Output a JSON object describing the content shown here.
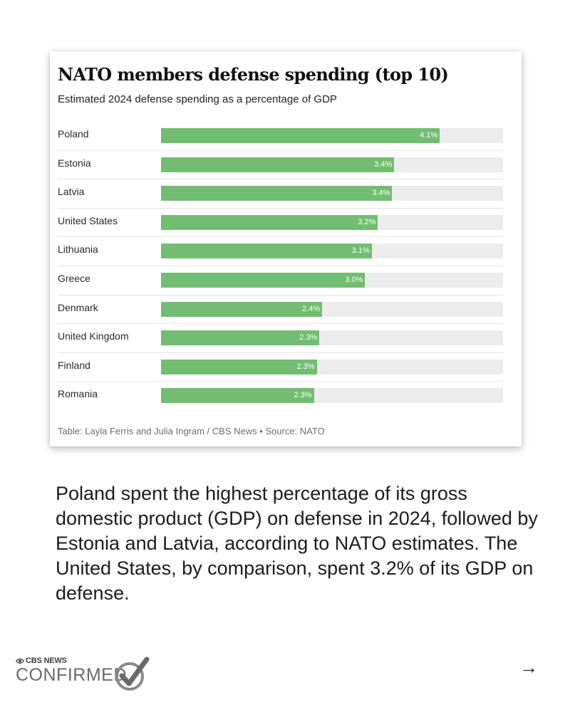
{
  "chart_data": {
    "type": "bar",
    "orientation": "horizontal",
    "title": "NATO members defense spending (top 10)",
    "subtitle": "Estimated 2024 defense spending as a percentage of GDP",
    "categories": [
      "Poland",
      "Estonia",
      "Latvia",
      "United States",
      "Lithuania",
      "Greece",
      "Denmark",
      "United Kingdom",
      "Finland",
      "Romania"
    ],
    "values": [
      4.1,
      3.43,
      3.4,
      3.19,
      3.1,
      3.0,
      2.37,
      2.33,
      2.29,
      2.25
    ],
    "value_labels": [
      "4.1%",
      "3.4%",
      "3.4%",
      "3.2%",
      "3.1%",
      "3.0%",
      "2.4%",
      "2.3%",
      "2.3%",
      "2.3%"
    ],
    "xlim": [
      0,
      5.03
    ],
    "grid": false,
    "bar_color": "#72bd71",
    "track_color": "#ececec",
    "footer": "Table: Layla Ferris and Julia Ingram / CBS News • Source: NATO"
  },
  "caption": "Poland spent the highest percentage of its gross domestic product (GDP) on defense in 2024, followed by Estonia and Latvia, according to NATO estimates. The United States, by comparison, spent 3.2% of its GDP on defense.",
  "logo": {
    "top": "CBS NEWS",
    "bottom": "CONFIRMED",
    "icons": [
      "cbs-eye-icon",
      "checkmark-icon"
    ]
  },
  "nav": {
    "next_arrow": "→",
    "icon": "arrow-right-icon"
  }
}
